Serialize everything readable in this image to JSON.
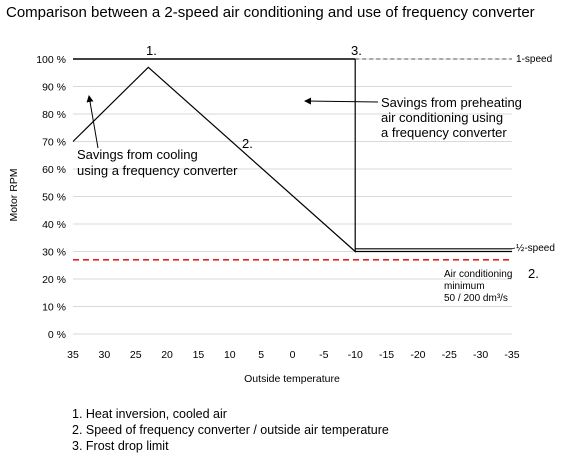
{
  "chart_data": {
    "type": "line",
    "title": "Comparison between a 2-speed air conditioning and use of frequency converter",
    "xlabel": "Outside temperature",
    "ylabel": "Motor RPM",
    "x_ticks": [
      "35",
      "30",
      "25",
      "20",
      "15",
      "10",
      "5",
      "0",
      "-5",
      "-10",
      "-15",
      "-20",
      "-25",
      "-30",
      "-35"
    ],
    "y_ticks": [
      "0 %",
      "10 %",
      "20 %",
      "30 %",
      "40 %",
      "50 %",
      "60 %",
      "70 %",
      "80 %",
      "90 %",
      "100 %"
    ],
    "xlim": [
      35,
      -35
    ],
    "ylim": [
      0,
      100
    ],
    "grid": "horizontal",
    "colors": {
      "line": "#000000",
      "dashed": "#555555",
      "minimum": "#e02020",
      "grid": "#d9d9d9"
    },
    "series": [
      {
        "name": "1-speed",
        "style": "solid-then-dashed",
        "x": [
          35,
          -10,
          -10,
          -35
        ],
        "y": [
          100,
          100,
          100,
          100
        ]
      },
      {
        "name": "½-speed",
        "style": "solid",
        "x": [
          -10,
          -35
        ],
        "y": [
          31,
          31
        ]
      },
      {
        "x": [
          35,
          23,
          -10,
          -10
        ],
        "y": [
          70,
          97,
          30,
          100
        ]
      },
      {
        "x": [
          -10,
          -35
        ],
        "y": [
          30,
          30
        ]
      },
      {
        "style": "red-dashed",
        "x": [
          35,
          -35
        ],
        "y": [
          27,
          27
        ]
      }
    ],
    "annotations": {
      "marker_1": "1.",
      "marker_2": "2.",
      "marker_3": "3.",
      "label_one_speed": "1-speed",
      "label_half_speed": "½-speed",
      "savings_preheating": [
        "Savings from preheating",
        "air conditioning using",
        "a frequency converter"
      ],
      "savings_cooling": [
        "Savings from cooling",
        "using a frequency converter"
      ],
      "minimum_num": "2.",
      "minimum_text": [
        "Air conditioning",
        "minimum",
        "50 / 200 dm³/s"
      ]
    }
  },
  "footnotes": [
    "1. Heat inversion, cooled air",
    "2. Speed of frequency converter / outside air temperature",
    "3. Frost drop limit"
  ]
}
